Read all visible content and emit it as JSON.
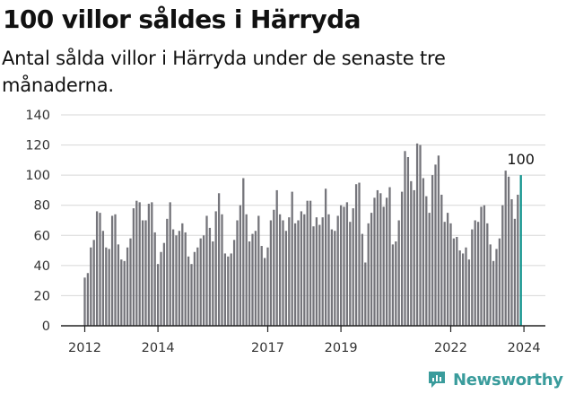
{
  "header": {
    "title": "100 villor såldes i Härryda",
    "subtitle": "Antal sålda villor i Härryda under de senaste tre månaderna."
  },
  "brand": {
    "name": "Newsworthy",
    "icon": "newsworthy-chart-icon",
    "color": "#3a9c9c"
  },
  "colors": {
    "bar": "#75757b",
    "highlight": "#12948e",
    "grid": "#d7d7d7",
    "axis": "#222222"
  },
  "chart_data": {
    "type": "bar",
    "title": "100 villor såldes i Härryda",
    "subtitle": "Antal sålda villor i Härryda under de senaste tre månaderna.",
    "xlabel": "",
    "ylabel": "",
    "ylim": [
      0,
      140
    ],
    "yticks": [
      "0",
      "20",
      "40",
      "60",
      "80",
      "100",
      "120",
      "140"
    ],
    "xticks": [
      "2012",
      "2014",
      "2017",
      "2019",
      "2022",
      "2024"
    ],
    "grid": true,
    "start": "2012-01",
    "frequency": "monthly",
    "values": [
      32,
      35,
      52,
      57,
      76,
      75,
      63,
      52,
      51,
      73,
      74,
      54,
      44,
      43,
      52,
      58,
      78,
      83,
      82,
      70,
      70,
      81,
      82,
      62,
      41,
      49,
      55,
      71,
      82,
      64,
      60,
      63,
      68,
      62,
      46,
      41,
      49,
      52,
      58,
      60,
      73,
      65,
      56,
      76,
      88,
      74,
      48,
      46,
      48,
      57,
      70,
      80,
      98,
      74,
      56,
      61,
      63,
      73,
      53,
      45,
      52,
      70,
      77,
      90,
      74,
      70,
      63,
      72,
      89,
      68,
      70,
      76,
      74,
      83,
      83,
      66,
      72,
      67,
      72,
      91,
      74,
      64,
      63,
      73,
      80,
      79,
      82,
      69,
      78,
      94,
      95,
      61,
      42,
      68,
      75,
      85,
      90,
      88,
      79,
      85,
      92,
      54,
      56,
      70,
      89,
      116,
      112,
      96,
      90,
      121,
      120,
      98,
      86,
      75,
      100,
      107,
      113,
      87,
      69,
      75,
      68,
      58,
      59,
      50,
      48,
      52,
      44,
      64,
      70,
      69,
      79,
      80,
      68,
      54,
      43,
      51,
      58,
      80,
      103,
      99,
      84,
      71,
      87,
      100
    ],
    "highlight": {
      "index": 143,
      "value": 100,
      "label": "100"
    }
  }
}
